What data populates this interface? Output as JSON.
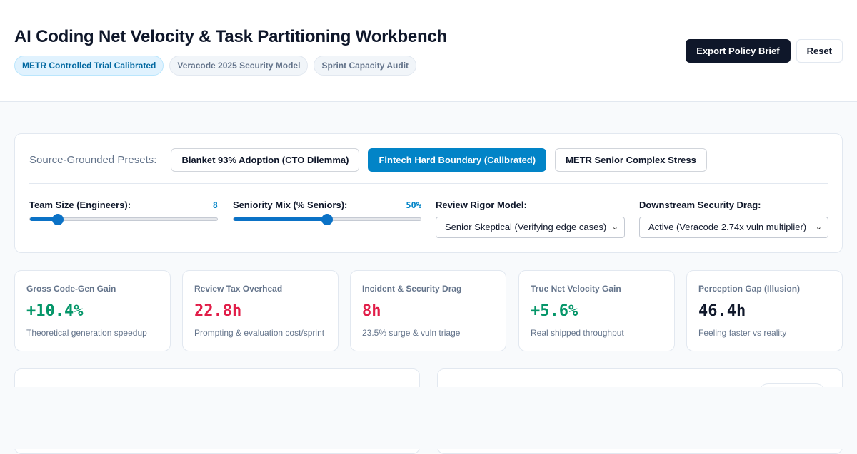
{
  "header": {
    "title": "AI Coding Net Velocity & Task Partitioning Workbench",
    "badges": [
      "METR Controlled Trial Calibrated",
      "Veracode 2025 Security Model",
      "Sprint Capacity Audit"
    ],
    "export_label": "Export Policy Brief",
    "reset_label": "Reset"
  },
  "presets": {
    "label": "Source-Grounded Presets:",
    "items": [
      "Blanket 93% Adoption (CTO Dilemma)",
      "Fintech Hard Boundary (Calibrated)",
      "METR Senior Complex Stress"
    ],
    "active_index": 1
  },
  "controls": {
    "team_size": {
      "label": "Team Size (Engineers):",
      "value": "8",
      "fraction": 0.15
    },
    "seniority": {
      "label": "Seniority Mix (% Seniors):",
      "value": "50%",
      "fraction": 0.5
    },
    "review_rigor": {
      "label": "Review Rigor Model:",
      "selected": "Senior Skeptical (Verifying edge cases)"
    },
    "security_drag": {
      "label": "Downstream Security Drag:",
      "selected": "Active (Veracode 2.74x vuln multiplier)"
    }
  },
  "metrics": [
    {
      "label": "Gross Code-Gen Gain",
      "value": "+10.4%",
      "sub": "Theoretical generation speedup",
      "color": "#059669"
    },
    {
      "label": "Review Tax Overhead",
      "value": "22.8h",
      "sub": "Prompting & evaluation cost/sprint",
      "color": "#e11d48"
    },
    {
      "label": "Incident & Security Drag",
      "value": "8h",
      "sub": "23.5% surge & vuln triage",
      "color": "#e11d48"
    },
    {
      "label": "True Net Velocity Gain",
      "value": "+5.6%",
      "sub": "Real shipped throughput",
      "color": "#059669"
    },
    {
      "label": "Perception Gap (Illusion)",
      "value": "46.4h",
      "sub": "Feeling faster vs reality",
      "color": "#0f172a"
    }
  ],
  "colors": {
    "accent": "#0284c7",
    "positive": "#059669",
    "negative": "#e11d48",
    "primary_button": "#0f172a"
  }
}
